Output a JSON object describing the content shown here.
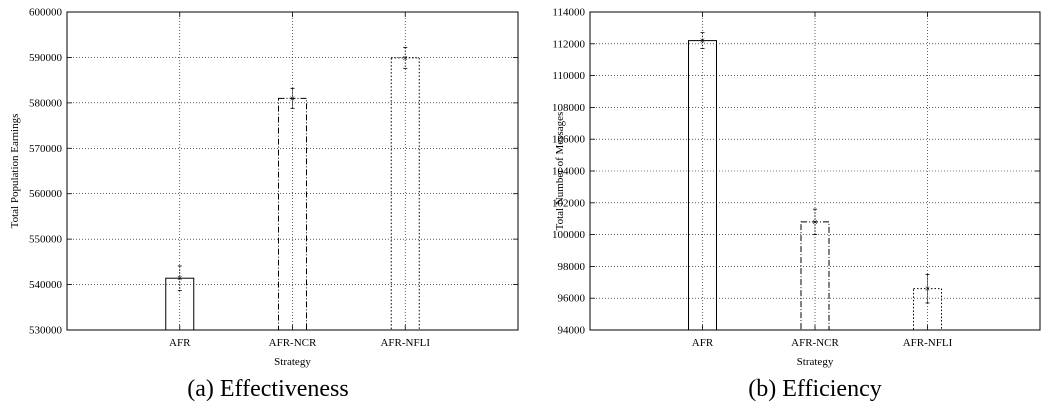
{
  "chart_data": [
    {
      "type": "bar",
      "caption": "(a) Effectiveness",
      "xlabel": "Strategy",
      "ylabel": "Total Population Earnings",
      "categories": [
        "AFR",
        "AFR-NCR",
        "AFR-NFLI"
      ],
      "values": [
        541400,
        581000,
        589900
      ],
      "error": [
        2700,
        2200,
        2300
      ],
      "ylim": [
        530000,
        600000
      ],
      "yticks": [
        530000,
        540000,
        550000,
        560000,
        570000,
        580000,
        590000,
        600000
      ],
      "ytick_labels": [
        "530000",
        "540000",
        "550000",
        "560000",
        "570000",
        "580000",
        "590000",
        "600000"
      ],
      "bar_styles": [
        "solid",
        "dashdot",
        "dotted"
      ],
      "grid": true
    },
    {
      "type": "bar",
      "caption": "(b) Efficiency",
      "xlabel": "Strategy",
      "ylabel": "Total Number of Messages",
      "categories": [
        "AFR",
        "AFR-NCR",
        "AFR-NFLI"
      ],
      "values": [
        112200,
        100800,
        96600
      ],
      "error": [
        500,
        800,
        900
      ],
      "ylim": [
        94000,
        114000
      ],
      "yticks": [
        94000,
        96000,
        98000,
        100000,
        102000,
        104000,
        106000,
        108000,
        110000,
        112000,
        114000
      ],
      "ytick_labels": [
        "94000",
        "96000",
        "98000",
        "100000",
        "102000",
        "104000",
        "106000",
        "108000",
        "110000",
        "112000",
        "114000"
      ],
      "bar_styles": [
        "solid",
        "dashdot",
        "dotted"
      ],
      "grid": true
    }
  ]
}
